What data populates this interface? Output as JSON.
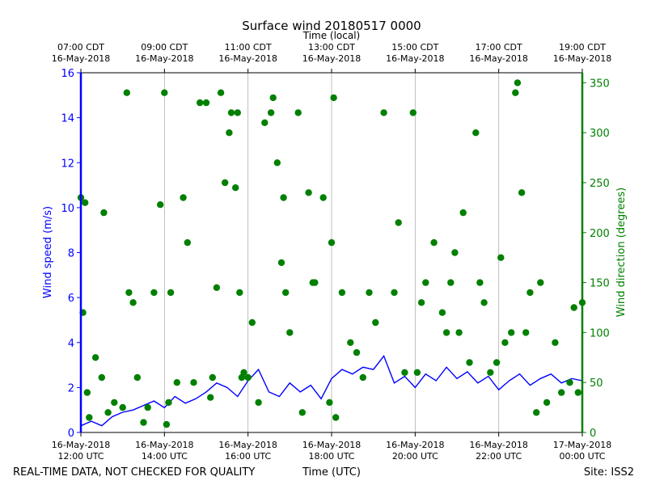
{
  "chart_data": {
    "type": "line+scatter",
    "title": "Surface wind 20180517 0000",
    "top_xlabel": "Time (local)",
    "xlabel": "Time (UTC)",
    "footer_left": "REAL-TIME DATA, NOT CHECKED FOR QUALITY",
    "footer_right": "Site: ISS2",
    "x_range_hours": [
      12,
      24
    ],
    "grid": "vertical at bottom ticks",
    "bottom_ticks": [
      {
        "hour": 12,
        "line1": "16-May-2018",
        "line2": "12:00 UTC"
      },
      {
        "hour": 14,
        "line1": "16-May-2018",
        "line2": "14:00 UTC"
      },
      {
        "hour": 16,
        "line1": "16-May-2018",
        "line2": "16:00 UTC"
      },
      {
        "hour": 18,
        "line1": "16-May-2018",
        "line2": "18:00 UTC"
      },
      {
        "hour": 20,
        "line1": "16-May-2018",
        "line2": "20:00 UTC"
      },
      {
        "hour": 22,
        "line1": "16-May-2018",
        "line2": "22:00 UTC"
      },
      {
        "hour": 24,
        "line1": "17-May-2018",
        "line2": "00:00 UTC"
      }
    ],
    "top_ticks": [
      {
        "hour": 12,
        "line1": "07:00 CDT",
        "line2": "16-May-2018"
      },
      {
        "hour": 14,
        "line1": "09:00 CDT",
        "line2": "16-May-2018"
      },
      {
        "hour": 16,
        "line1": "11:00 CDT",
        "line2": "16-May-2018"
      },
      {
        "hour": 18,
        "line1": "13:00 CDT",
        "line2": "16-May-2018"
      },
      {
        "hour": 20,
        "line1": "15:00 CDT",
        "line2": "16-May-2018"
      },
      {
        "hour": 22,
        "line1": "17:00 CDT",
        "line2": "16-May-2018"
      },
      {
        "hour": 24,
        "line1": "19:00 CDT",
        "line2": "16-May-2018"
      }
    ],
    "left_axis": {
      "label": "Wind speed (m/s)",
      "color": "#0000ff",
      "ylim": [
        0,
        16
      ],
      "ticks": [
        0,
        2,
        4,
        6,
        8,
        10,
        12,
        14,
        16
      ]
    },
    "right_axis": {
      "label": "Wind direction (degrees)",
      "color": "#008000",
      "ylim": [
        0,
        360
      ],
      "ticks": [
        0,
        50,
        100,
        150,
        200,
        250,
        300,
        350
      ]
    },
    "series": [
      {
        "name": "Wind speed",
        "type": "line",
        "axis": "left",
        "color": "#0000ff",
        "x": [
          12.0,
          12.25,
          12.5,
          12.75,
          13.0,
          13.25,
          13.5,
          13.75,
          14.0,
          14.25,
          14.5,
          14.75,
          15.0,
          15.25,
          15.5,
          15.75,
          16.0,
          16.25,
          16.5,
          16.75,
          17.0,
          17.25,
          17.5,
          17.75,
          18.0,
          18.25,
          18.5,
          18.75,
          19.0,
          19.25,
          19.5,
          19.75,
          20.0,
          20.25,
          20.5,
          20.75,
          21.0,
          21.25,
          21.5,
          21.75,
          22.0,
          22.25,
          22.5,
          22.75,
          23.0,
          23.25,
          23.5,
          23.75,
          24.0
        ],
        "values": [
          0.3,
          0.5,
          0.3,
          0.7,
          0.9,
          1.0,
          1.2,
          1.4,
          1.1,
          1.6,
          1.3,
          1.5,
          1.8,
          2.2,
          2.0,
          1.6,
          2.3,
          2.8,
          1.8,
          1.6,
          2.2,
          1.8,
          2.1,
          1.5,
          2.4,
          2.8,
          2.6,
          2.9,
          2.8,
          3.4,
          2.2,
          2.5,
          2.0,
          2.6,
          2.3,
          2.9,
          2.4,
          2.7,
          2.2,
          2.5,
          1.9,
          2.3,
          2.6,
          2.1,
          2.4,
          2.6,
          2.2,
          2.4,
          2.3
        ]
      },
      {
        "name": "Wind direction",
        "type": "scatter",
        "axis": "right",
        "color": "#008000",
        "x": [
          12.0,
          12.05,
          12.1,
          12.15,
          12.2,
          12.35,
          12.5,
          12.55,
          12.65,
          12.8,
          13.0,
          13.1,
          13.15,
          13.25,
          13.35,
          13.5,
          13.6,
          13.75,
          13.9,
          14.0,
          14.05,
          14.1,
          14.15,
          14.3,
          14.45,
          14.55,
          14.7,
          14.85,
          15.0,
          15.1,
          15.15,
          15.25,
          15.35,
          15.45,
          15.55,
          15.6,
          15.7,
          15.75,
          15.8,
          15.85,
          15.9,
          16.0,
          16.1,
          16.25,
          16.4,
          16.55,
          16.6,
          16.7,
          16.8,
          16.85,
          16.9,
          17.0,
          17.2,
          17.3,
          17.45,
          17.55,
          17.6,
          17.8,
          17.95,
          18.0,
          18.05,
          18.1,
          18.25,
          18.45,
          18.6,
          18.75,
          18.9,
          19.05,
          19.25,
          19.5,
          19.6,
          19.75,
          19.95,
          20.05,
          20.15,
          20.25,
          20.45,
          20.65,
          20.75,
          20.85,
          20.95,
          21.05,
          21.15,
          21.3,
          21.45,
          21.55,
          21.65,
          21.8,
          21.95,
          22.05,
          22.15,
          22.3,
          22.4,
          22.45,
          22.55,
          22.65,
          22.75,
          22.9,
          23.0,
          23.15,
          23.35,
          23.5,
          23.7,
          23.8,
          23.9,
          24.0
        ],
        "values": [
          235,
          120,
          230,
          40,
          15,
          75,
          55,
          220,
          20,
          30,
          25,
          340,
          140,
          130,
          55,
          10,
          25,
          140,
          228,
          340,
          8,
          30,
          140,
          50,
          235,
          190,
          50,
          330,
          330,
          35,
          55,
          145,
          340,
          250,
          300,
          320,
          245,
          320,
          140,
          55,
          60,
          55,
          110,
          30,
          310,
          320,
          335,
          270,
          170,
          235,
          140,
          100,
          320,
          20,
          240,
          150,
          150,
          235,
          30,
          190,
          335,
          15,
          140,
          90,
          80,
          55,
          140,
          110,
          320,
          140,
          210,
          60,
          320,
          60,
          130,
          150,
          190,
          120,
          100,
          150,
          180,
          100,
          220,
          70,
          300,
          150,
          130,
          60,
          70,
          175,
          90,
          100,
          340,
          350,
          240,
          100,
          140,
          20,
          150,
          30,
          90,
          40,
          50,
          125,
          40,
          130
        ]
      }
    ]
  }
}
